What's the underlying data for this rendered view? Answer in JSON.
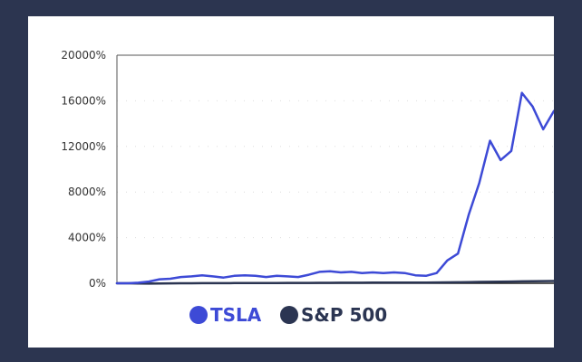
{
  "colors": {
    "page_background": "#2c3550",
    "card_background": "#ffffff",
    "axis": "#222222",
    "gridline_dots": "#dddddd"
  },
  "chart_data": {
    "type": "line",
    "title": "",
    "xlabel": "",
    "ylabel": "",
    "ylim": [
      0,
      20000
    ],
    "yticks": [
      0,
      4000,
      8000,
      12000,
      16000,
      20000
    ],
    "ytick_labels": [
      "0%",
      "4000%",
      "8000%",
      "12000%",
      "16000%",
      "20000%"
    ],
    "grid": "horizontal dotted",
    "legend_position": "bottom",
    "series": [
      {
        "name": "TSLA",
        "color": "#3d4ad6",
        "values": [
          0,
          0,
          50,
          150,
          350,
          400,
          550,
          600,
          700,
          600,
          500,
          650,
          700,
          650,
          550,
          650,
          600,
          550,
          750,
          1000,
          1050,
          950,
          1000,
          900,
          950,
          900,
          950,
          900,
          700,
          650,
          900,
          2000,
          2600,
          6000,
          8800,
          12500,
          10800,
          11600,
          16700,
          15500,
          13500,
          15100
        ]
      },
      {
        "name": "S&P 500",
        "color": "#2b3552",
        "values": [
          0,
          0,
          -20,
          -30,
          -20,
          -10,
          0,
          0,
          10,
          10,
          10,
          15,
          20,
          20,
          20,
          25,
          30,
          30,
          35,
          40,
          40,
          45,
          50,
          50,
          55,
          60,
          60,
          65,
          60,
          60,
          70,
          80,
          90,
          100,
          120,
          130,
          140,
          150,
          170,
          180,
          190,
          200
        ]
      }
    ]
  }
}
